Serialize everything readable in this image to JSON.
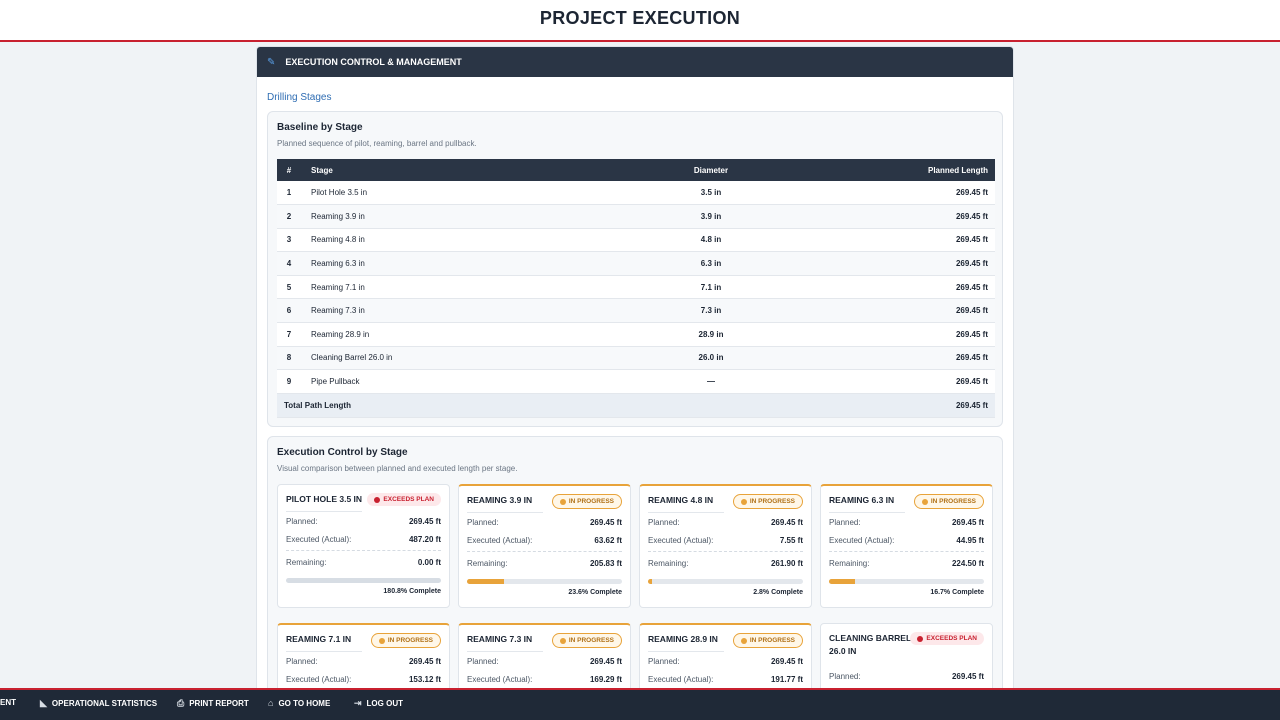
{
  "page": {
    "title": "PROJECT EXECUTION"
  },
  "panel": {
    "title": "EXECUTION CONTROL & MANAGEMENT",
    "icon": "edit-icon"
  },
  "tab": {
    "label": "Drilling Stages"
  },
  "baseline": {
    "title": "Baseline by Stage",
    "subtitle": "Planned sequence of pilot, reaming, barrel and pullback.",
    "columns": [
      "#",
      "Stage",
      "Diameter",
      "Planned Length"
    ],
    "rows": [
      {
        "num": "1",
        "stage": "Pilot Hole 3.5 in",
        "diameter": "3.5 in",
        "length": "269.45 ft"
      },
      {
        "num": "2",
        "stage": "Reaming 3.9 in",
        "diameter": "3.9 in",
        "length": "269.45 ft"
      },
      {
        "num": "3",
        "stage": "Reaming 4.8 in",
        "diameter": "4.8 in",
        "length": "269.45 ft"
      },
      {
        "num": "4",
        "stage": "Reaming 6.3 in",
        "diameter": "6.3 in",
        "length": "269.45 ft"
      },
      {
        "num": "5",
        "stage": "Reaming 7.1 in",
        "diameter": "7.1 in",
        "length": "269.45 ft"
      },
      {
        "num": "6",
        "stage": "Reaming 7.3 in",
        "diameter": "7.3 in",
        "length": "269.45 ft"
      },
      {
        "num": "7",
        "stage": "Reaming 28.9 in",
        "diameter": "28.9 in",
        "length": "269.45 ft"
      },
      {
        "num": "8",
        "stage": "Cleaning Barrel 26.0 in",
        "diameter": "26.0 in",
        "length": "269.45 ft"
      },
      {
        "num": "9",
        "stage": "Pipe Pullback",
        "diameter": "—",
        "length": "269.45 ft"
      }
    ],
    "total_label": "Total Path Length",
    "total_value": "269.45 ft"
  },
  "execution": {
    "title": "Execution Control by Stage",
    "subtitle": "Visual comparison between planned and executed length per stage.",
    "labels": {
      "planned": "Planned:",
      "executed": "Executed (Actual):",
      "remaining": "Remaining:"
    },
    "cards": [
      {
        "title": "PILOT HOLE 3.5 IN",
        "status": "EXCEEDS PLAN",
        "kind": "exceeds",
        "planned": "269.45 ft",
        "executed": "487.20 ft",
        "remaining": "0.00 ft",
        "progress": 180.8,
        "complete": "180.8% Complete"
      },
      {
        "title": "REAMING 3.9 IN",
        "status": "IN PROGRESS",
        "kind": "inprog",
        "planned": "269.45 ft",
        "executed": "63.62 ft",
        "remaining": "205.83 ft",
        "progress": 23.6,
        "complete": "23.6% Complete"
      },
      {
        "title": "REAMING 4.8 IN",
        "status": "IN PROGRESS",
        "kind": "inprog",
        "planned": "269.45 ft",
        "executed": "7.55 ft",
        "remaining": "261.90 ft",
        "progress": 2.8,
        "complete": "2.8% Complete"
      },
      {
        "title": "REAMING 6.3 IN",
        "status": "IN PROGRESS",
        "kind": "inprog",
        "planned": "269.45 ft",
        "executed": "44.95 ft",
        "remaining": "224.50 ft",
        "progress": 16.7,
        "complete": "16.7% Complete"
      },
      {
        "title": "REAMING 7.1 IN",
        "status": "IN PROGRESS",
        "kind": "inprog",
        "planned": "269.45 ft",
        "executed": "153.12 ft"
      },
      {
        "title": "REAMING 7.3 IN",
        "status": "IN PROGRESS",
        "kind": "inprog",
        "planned": "269.45 ft",
        "executed": "169.29 ft"
      },
      {
        "title": "REAMING 28.9 IN",
        "status": "IN PROGRESS",
        "kind": "inprog",
        "planned": "269.45 ft",
        "executed": "191.77 ft"
      },
      {
        "title": "CLEANING BARREL 26.0 IN",
        "status": "EXCEEDS PLAN",
        "kind": "exceeds",
        "planned": "269.45 ft"
      }
    ]
  },
  "bottom_nav": [
    {
      "label": "ENT",
      "icon": ""
    },
    {
      "label": "OPERATIONAL STATISTICS",
      "icon": "chart-icon"
    },
    {
      "label": "PRINT REPORT",
      "icon": "printer-icon"
    },
    {
      "label": "GO TO HOME",
      "icon": "home-icon"
    },
    {
      "label": "LOG OUT",
      "icon": "logout-icon"
    }
  ],
  "colors": {
    "accent_red": "#c8202f",
    "header_dark": "#2a3545",
    "progress_orange": "#e8a33a"
  }
}
